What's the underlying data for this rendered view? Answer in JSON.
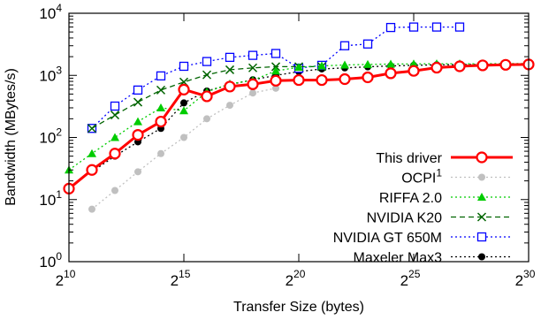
{
  "chart_data": {
    "type": "line",
    "title": "",
    "xlabel": "Transfer Size (bytes)",
    "ylabel": "Bandwidth (MBytes/s)",
    "x_scale": "log2",
    "y_scale": "log10",
    "xlim": [
      1024,
      1073741824
    ],
    "ylim": [
      1,
      10000
    ],
    "x_ticks": [
      {
        "base": "2",
        "exp": "10",
        "value": 1024
      },
      {
        "base": "2",
        "exp": "15",
        "value": 32768
      },
      {
        "base": "2",
        "exp": "20",
        "value": 1048576
      },
      {
        "base": "2",
        "exp": "25",
        "value": 33554432
      },
      {
        "base": "2",
        "exp": "30",
        "value": 1073741824
      }
    ],
    "y_ticks": [
      {
        "base": "10",
        "exp": "0",
        "value": 1
      },
      {
        "base": "10",
        "exp": "1",
        "value": 10
      },
      {
        "base": "10",
        "exp": "2",
        "value": 100
      },
      {
        "base": "10",
        "exp": "3",
        "value": 1000
      },
      {
        "base": "10",
        "exp": "4",
        "value": 10000
      }
    ],
    "grid": false,
    "legend_position": "bottom-right",
    "series": [
      {
        "name": "This driver",
        "color": "#ff0000",
        "marker": "open-circle",
        "line": "solid-thick",
        "x": [
          1024,
          2048,
          4096,
          8192,
          16384,
          32768,
          65536,
          131072,
          262144,
          524288,
          1048576,
          2097152,
          4194304,
          8388608,
          16777216,
          33554432,
          67108864,
          134217728,
          268435456,
          536870912,
          1073741824
        ],
        "y": [
          15,
          30,
          55,
          110,
          180,
          590,
          460,
          660,
          720,
          820,
          840,
          840,
          870,
          930,
          1080,
          1180,
          1330,
          1400,
          1450,
          1480,
          1500
        ]
      },
      {
        "name": "OCPI",
        "name_sup": "1",
        "color": "#c0c0c0",
        "marker": "filled-circle",
        "line": "dotted",
        "x": [
          2048,
          4096,
          8192,
          16384,
          32768,
          65536,
          131072,
          262144,
          524288
        ],
        "y": [
          7,
          14,
          28,
          55,
          100,
          200,
          330,
          520,
          620
        ]
      },
      {
        "name": "RIFFA 2.0",
        "color": "#00cc00",
        "marker": "filled-triangle",
        "line": "dotted",
        "x": [
          1024,
          2048,
          4096,
          8192,
          16384,
          32768,
          65536,
          131072,
          262144,
          524288,
          1048576,
          2097152,
          4194304,
          8388608,
          16777216,
          33554432,
          67108864,
          134217728,
          268435456,
          536870912,
          1073741824
        ],
        "y": [
          30,
          55,
          100,
          180,
          300,
          270,
          540,
          730,
          830,
          1180,
          1350,
          1420,
          1470,
          1500,
          1520,
          1530,
          1540,
          1540,
          1540,
          1550,
          1550
        ]
      },
      {
        "name": "NVIDIA K20",
        "color": "#006400",
        "marker": "cross",
        "line": "dashed",
        "x": [
          2048,
          4096,
          8192,
          16384,
          32768,
          65536,
          131072,
          262144,
          524288,
          1048576,
          2097152
        ],
        "y": [
          140,
          230,
          370,
          580,
          780,
          1020,
          1230,
          1320,
          1380,
          1380,
          1380
        ]
      },
      {
        "name": "NVIDIA GT 650M",
        "color": "#0000ff",
        "marker": "open-square",
        "line": "dotted",
        "x": [
          2048,
          4096,
          8192,
          16384,
          32768,
          65536,
          131072,
          262144,
          524288,
          1048576,
          2097152,
          4194304,
          8388608,
          16777216,
          33554432,
          67108864,
          134217728
        ],
        "y": [
          140,
          320,
          580,
          980,
          1400,
          1670,
          1950,
          2100,
          2250,
          1300,
          1450,
          3000,
          3200,
          5900,
          6000,
          6000,
          6000
        ]
      },
      {
        "name": "Maxeler Max3",
        "color": "#000000",
        "marker": "filled-circle",
        "line": "dotted",
        "x": [
          2048,
          4096,
          8192,
          16384,
          32768,
          65536,
          131072,
          262144,
          524288,
          1048576,
          2097152,
          4194304,
          8388608,
          16777216,
          33554432,
          67108864,
          134217728,
          268435456,
          536870912
        ],
        "y": [
          28,
          50,
          85,
          140,
          360,
          560,
          710,
          850,
          1000,
          1150,
          1270,
          1320,
          1370,
          1420,
          1450,
          1480,
          1490,
          1500,
          1510
        ]
      }
    ]
  }
}
